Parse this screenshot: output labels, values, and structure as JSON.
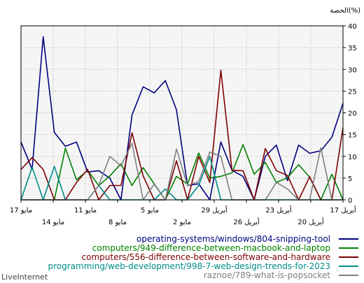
{
  "chart_data": {
    "type": "line",
    "ylabel": "الحصة(%)",
    "ylim": [
      0,
      40
    ],
    "yticks": [
      0,
      5,
      10,
      15,
      20,
      25,
      30,
      35,
      40
    ],
    "grid": true,
    "legend_position": "bottom-right",
    "x_tick_labels": [
      {
        "label": "17 أبريل",
        "row": 1
      },
      {
        "label": "20 أبريل",
        "row": 2
      },
      {
        "label": "23 أبريل",
        "row": 1
      },
      {
        "label": "26 أبريل",
        "row": 2
      },
      {
        "label": "29 أبريل",
        "row": 1
      },
      {
        "label": "2 مايو",
        "row": 2
      },
      {
        "label": "5 مايو",
        "row": 1
      },
      {
        "label": "8 مايو",
        "row": 2
      },
      {
        "label": "11 مايو",
        "row": 1
      },
      {
        "label": "14 مايو",
        "row": 2
      },
      {
        "label": "17 مايو",
        "row": 1
      }
    ],
    "series": [
      {
        "name": "operating-systems/windows/804-snipping-tool",
        "color": "#00007f",
        "values": [
          13.3,
          7,
          37.5,
          15.5,
          12.3,
          13.3,
          6.4,
          6.7,
          5,
          0,
          19.5,
          26,
          24.6,
          27.4,
          20.7,
          3.3,
          3.7,
          0,
          13.3,
          6.8,
          5.4,
          0,
          10,
          12.6,
          4.4,
          12.6,
          10.7,
          11.3,
          14.4,
          22.2
        ]
      },
      {
        "name": "computers/949-difference-between-macbook-and-laptop",
        "color": "#008000",
        "values": [
          0,
          0,
          0,
          0,
          11.9,
          4.6,
          6.8,
          3.3,
          5.5,
          8.3,
          3.3,
          7.4,
          3.7,
          0,
          5.4,
          3.6,
          10.8,
          5,
          5.4,
          6.2,
          12.7,
          5.9,
          8.6,
          4,
          5.1,
          8.1,
          5.2,
          0,
          5.9,
          0
        ]
      },
      {
        "name": "computers/556-difference-between-software-and-hardware",
        "color": "#7f0000",
        "values": [
          7,
          9.7,
          7,
          0,
          0,
          4,
          7,
          0,
          3.3,
          3.3,
          15.4,
          5.5,
          0,
          0,
          9,
          0,
          10,
          4,
          29.8,
          6.8,
          6.7,
          0,
          11.8,
          6.7,
          5.6,
          0,
          5.3,
          0,
          0,
          16.6
        ]
      },
      {
        "name": "programming/web-development/998-7-web-design-trends-for-2023",
        "color": "#008b8b",
        "values": [
          0,
          7.5,
          0,
          7.7,
          0,
          0,
          0,
          3.3,
          0,
          0,
          0,
          0,
          0,
          2.5,
          0,
          0,
          3.3,
          10,
          0,
          0,
          0,
          0,
          0,
          0,
          0,
          0,
          0,
          0,
          0,
          0
        ]
      },
      {
        "name": "raznoe/789-what-is-popsocket",
        "color": "#808080",
        "values": [
          0,
          0,
          0,
          0,
          0,
          0,
          0,
          3.3,
          10,
          7.8,
          13,
          0,
          3.6,
          0,
          11.7,
          3.3,
          4.2,
          11,
          10,
          0,
          0,
          0,
          0,
          4,
          2.5,
          0,
          0,
          12,
          0,
          0
        ]
      }
    ]
  },
  "footer": {
    "brand": "LiveInternet"
  }
}
